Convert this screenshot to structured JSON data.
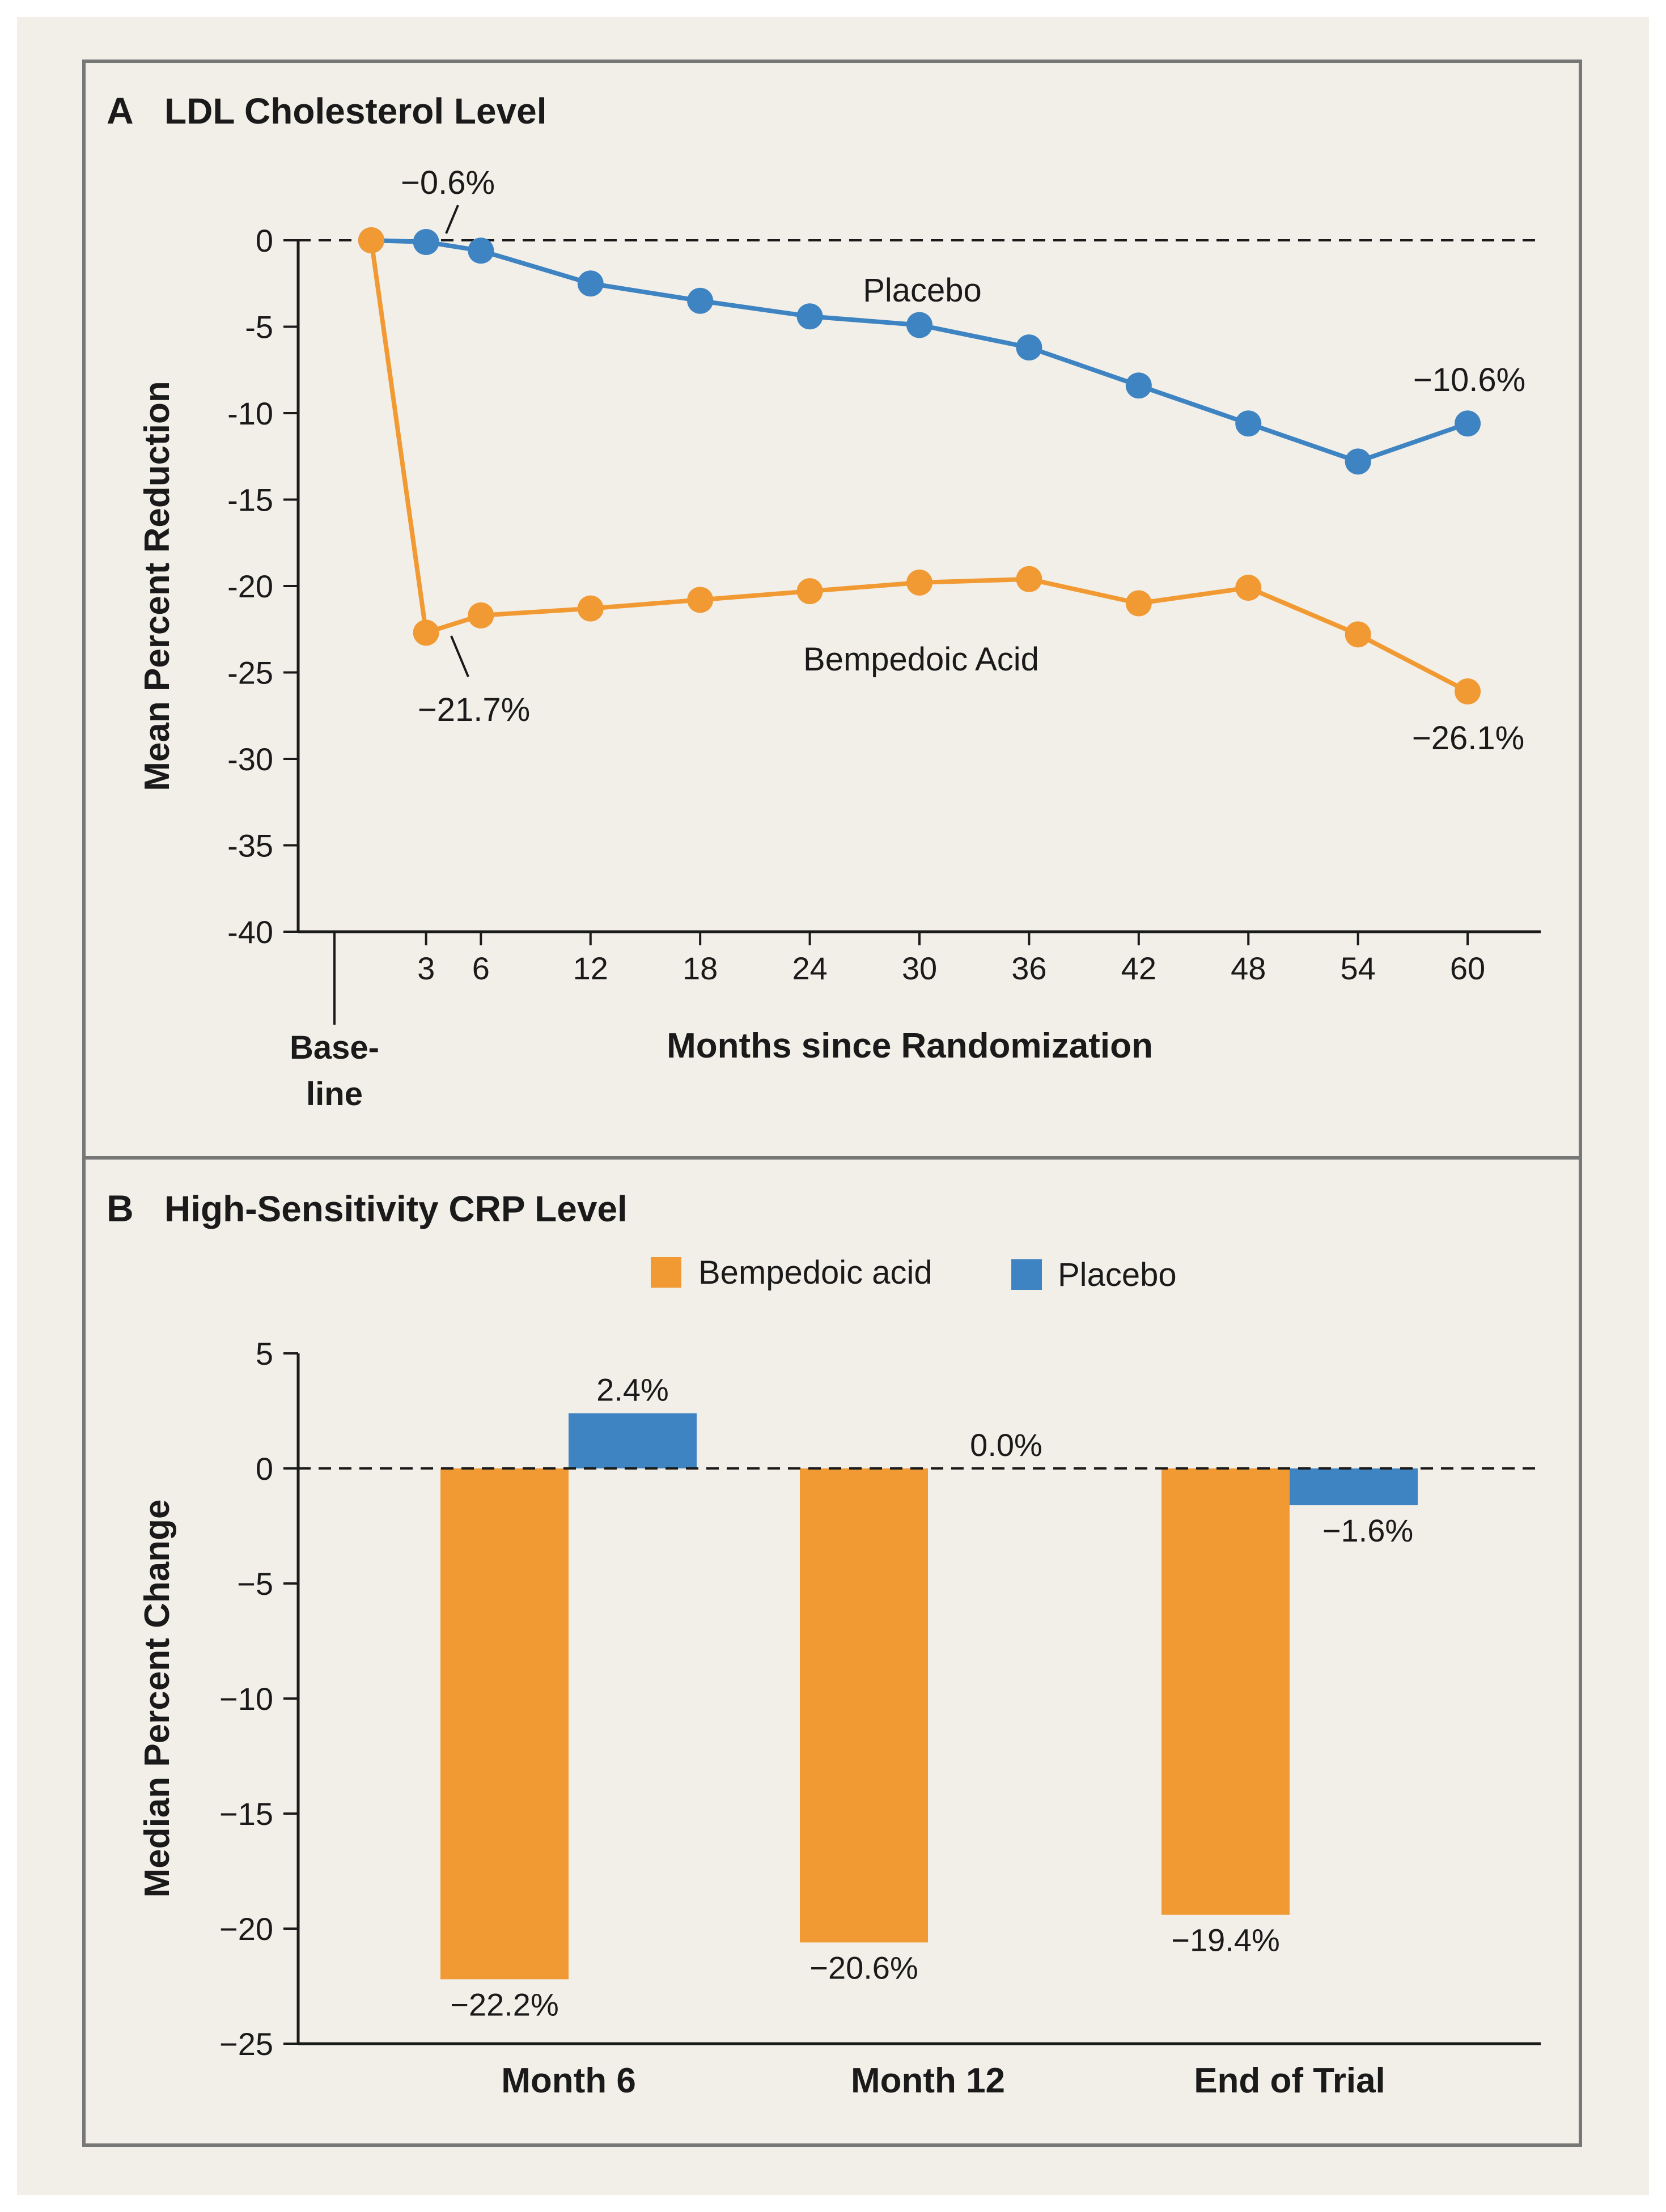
{
  "colors": {
    "page_background": "#f2efe8",
    "bempedoic": "#f19a33",
    "placebo": "#3f84c2",
    "frame": "#777777",
    "text": "#1a1a1a"
  },
  "chart_data": [
    {
      "type": "line",
      "panel_letter": "A",
      "title": "LDL Cholesterol Level",
      "xlabel": "Months since Randomization",
      "ylabel": "Mean Percent Reduction",
      "ylim": [
        -40,
        0
      ],
      "yticks": [
        0,
        -5,
        -10,
        -15,
        -20,
        -25,
        -30,
        -35,
        -40
      ],
      "ytick_labels": [
        "0",
        "-5",
        "-10",
        "-15",
        "-20",
        "-25",
        "-30",
        "-35",
        "-40"
      ],
      "xlim": [
        -4,
        64
      ],
      "xticks": [
        3,
        6,
        12,
        18,
        24,
        30,
        36,
        42,
        48,
        54,
        60
      ],
      "xtick_labels": [
        "3",
        "6",
        "12",
        "18",
        "24",
        "30",
        "36",
        "42",
        "48",
        "54",
        "60"
      ],
      "baseline_label_lines": [
        "Base-",
        "line"
      ],
      "reference_line": 0,
      "grid": false,
      "series": [
        {
          "name": "Placebo",
          "color": "#3f84c2",
          "x": [
            0,
            3,
            6,
            12,
            18,
            24,
            30,
            36,
            42,
            48,
            54,
            60
          ],
          "values": [
            0,
            -0.1,
            -0.6,
            -2.5,
            -3.5,
            -4.4,
            -4.9,
            -6.2,
            -8.4,
            -10.6,
            -12.8,
            -10.6
          ]
        },
        {
          "name": "Bempedoic Acid",
          "color": "#f19a33",
          "x": [
            0,
            3,
            6,
            12,
            18,
            24,
            30,
            36,
            42,
            48,
            54,
            60
          ],
          "values": [
            0,
            -22.7,
            -21.7,
            -21.3,
            -20.8,
            -20.3,
            -19.8,
            -19.6,
            -21.0,
            -20.1,
            -22.8,
            -26.1
          ]
        }
      ],
      "series_labels": [
        "Placebo",
        "Bempedoic Acid"
      ],
      "annotations": [
        {
          "text": "−0.6%",
          "series": "Placebo",
          "x": 6
        },
        {
          "text": "−10.6%",
          "series": "Placebo",
          "x": 60
        },
        {
          "text": "−21.7%",
          "series": "Bempedoic Acid",
          "x": 6
        },
        {
          "text": "−26.1%",
          "series": "Bempedoic Acid",
          "x": 60
        }
      ]
    },
    {
      "type": "bar",
      "panel_letter": "B",
      "title": "High-Sensitivity CRP Level",
      "xlabel": "",
      "ylabel": "Median Percent Change",
      "ylim": [
        -25,
        5
      ],
      "yticks": [
        5,
        0,
        -5,
        -10,
        -15,
        -20,
        -25
      ],
      "ytick_labels": [
        "5",
        "0",
        "−5",
        "−10",
        "−15",
        "−20",
        "−25"
      ],
      "categories": [
        "Month 6",
        "Month 12",
        "End of Trial"
      ],
      "reference_line": 0,
      "legend": "top-center",
      "legend_entries": [
        "Bempedoic acid",
        "Placebo"
      ],
      "grid": false,
      "series": [
        {
          "name": "Bempedoic acid",
          "color": "#f19a33",
          "values": [
            -22.2,
            -20.6,
            -19.4
          ],
          "labels": [
            "−22.2%",
            "−20.6%",
            "−19.4%"
          ]
        },
        {
          "name": "Placebo",
          "color": "#3f84c2",
          "values": [
            2.4,
            0.0,
            -1.6
          ],
          "labels": [
            "2.4%",
            "0.0%",
            "−1.6%"
          ]
        }
      ]
    }
  ]
}
